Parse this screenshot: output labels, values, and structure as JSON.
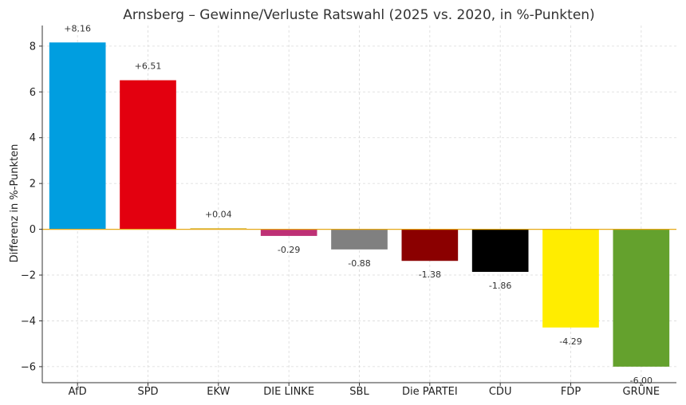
{
  "chart_data": {
    "type": "bar",
    "title": "Arnsberg – Gewinne/Verluste Ratswahl (2025 vs. 2020, in %-Punkten)",
    "xlabel": "",
    "ylabel": "Differenz in %-Punkten",
    "ylim": [
      -6.7,
      8.9
    ],
    "yticks": [
      -6,
      -4,
      -2,
      0,
      2,
      4,
      6,
      8
    ],
    "ytick_labels": [
      "−6",
      "−4",
      "−2",
      "0",
      "2",
      "4",
      "6",
      "8"
    ],
    "grid": true,
    "zero_line_color": "#e6a817",
    "categories": [
      "AfD",
      "SPD",
      "EKW",
      "DIE LINKE",
      "SBL",
      "Die PARTEI",
      "CDU",
      "FDP",
      "GRÜNE"
    ],
    "values": [
      8.16,
      6.51,
      0.04,
      -0.29,
      -0.88,
      -1.38,
      -1.86,
      -4.29,
      -6.0
    ],
    "value_labels": [
      "+8.16",
      "+6.51",
      "+0.04",
      "-0.29",
      "-0.88",
      "-1.38",
      "-1.86",
      "-4.29",
      "-6.00"
    ],
    "colors": [
      "#009ee0",
      "#e3000f",
      "#c8a400",
      "#be3075",
      "#808080",
      "#8b0000",
      "#000000",
      "#ffed00",
      "#64a12d"
    ]
  }
}
